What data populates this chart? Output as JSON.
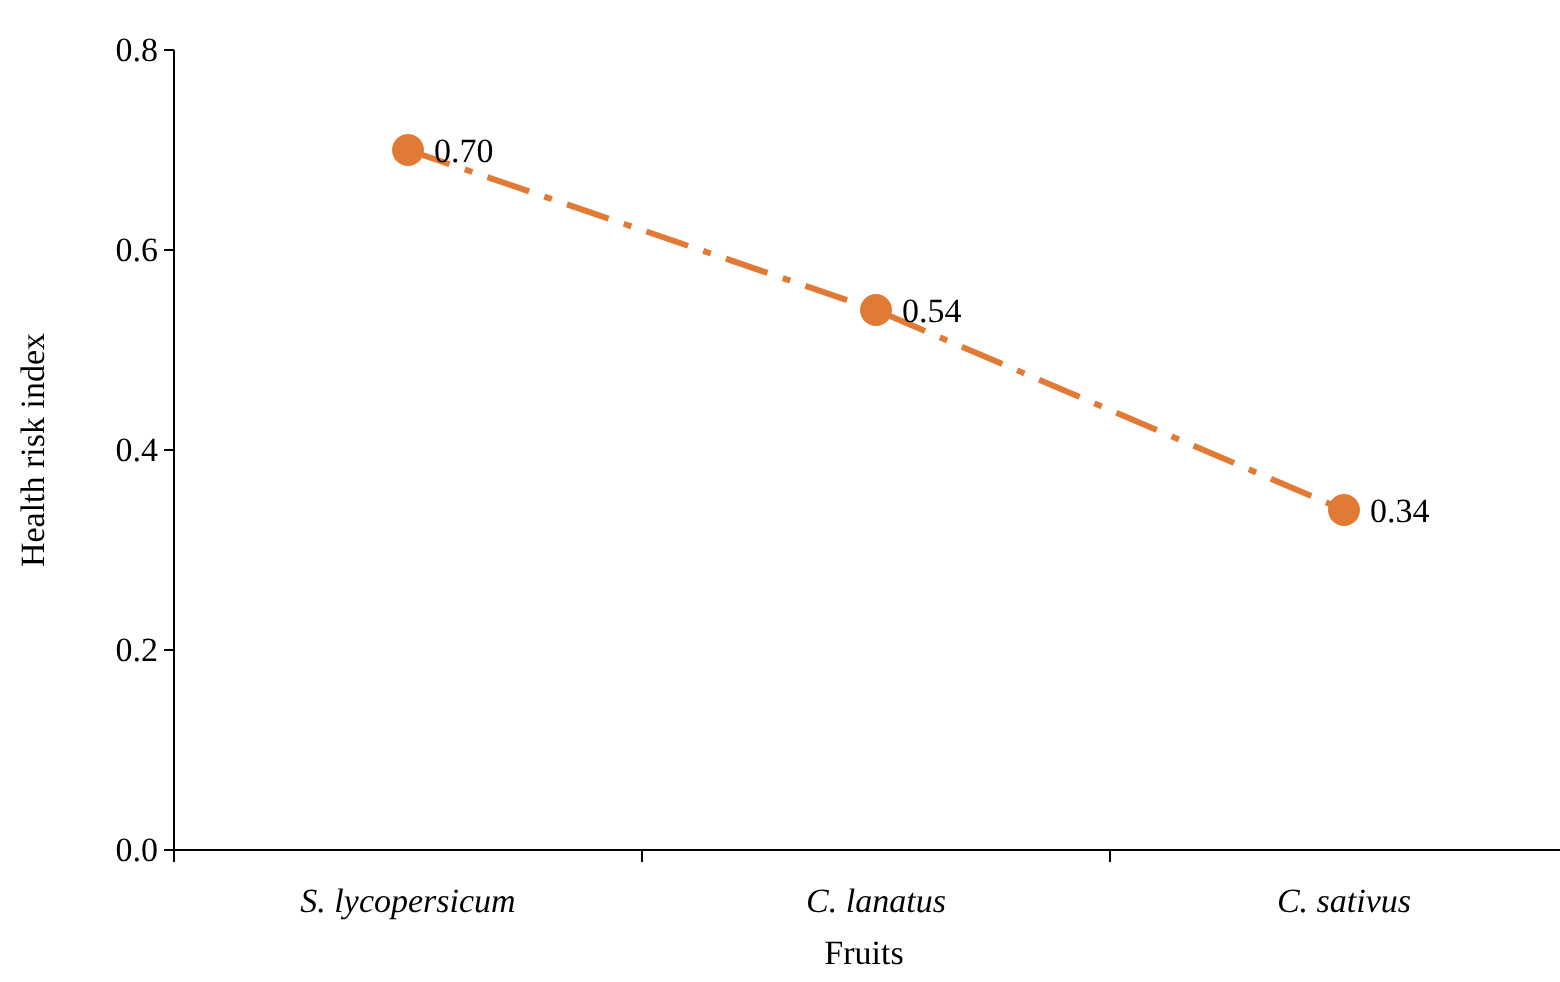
{
  "chart_data": {
    "type": "line",
    "xlabel": "Fruits",
    "ylabel": "Health risk index",
    "categories": [
      "S. lycopersicum",
      "C. lanatus",
      "C. sativus"
    ],
    "series": [
      {
        "color": "#e07a35",
        "values": [
          0.7,
          0.54,
          0.34
        ],
        "value_labels": [
          "0.70",
          "0.54",
          "0.34"
        ]
      }
    ],
    "ylim": [
      0,
      0.8
    ],
    "yticks": [
      {
        "value": 0,
        "label": "0.0"
      },
      {
        "value": 0.2,
        "label": "0.2"
      },
      {
        "value": 0.4,
        "label": "0.4"
      },
      {
        "value": 0.6,
        "label": "0.6"
      },
      {
        "value": 0.8,
        "label": "0.8"
      }
    ],
    "grid": false,
    "marker": "circle",
    "line_style": "dashed"
  }
}
